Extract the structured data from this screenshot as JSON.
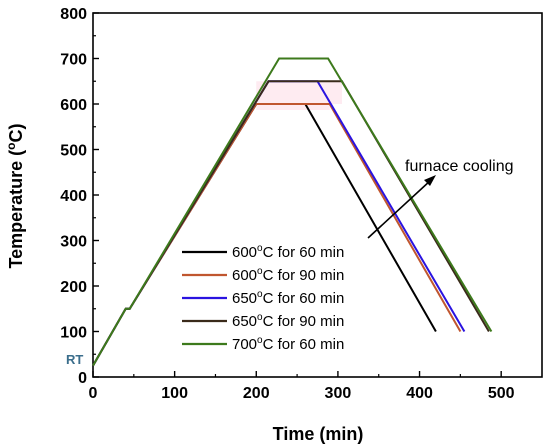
{
  "chart_data": {
    "type": "line",
    "xlabel": "Time (min)",
    "ylabel": {
      "prefix": "Temperature (",
      "sup": "o",
      "suffix": "C)"
    },
    "xlim": [
      0,
      550
    ],
    "ylim": [
      0,
      800
    ],
    "xticks": [
      "0",
      "100",
      "200",
      "300",
      "400",
      "500"
    ],
    "yticks": [
      "0",
      "100",
      "200",
      "300",
      "400",
      "500",
      "600",
      "700",
      "800"
    ],
    "grid": false,
    "legend_position": "bottom-left",
    "annotations": {
      "rt": "RT",
      "arrow_label": "furnace cooling"
    },
    "series": [
      {
        "label": {
          "temp": "600",
          "sup": "o",
          "rest": "C for 60 min"
        },
        "color": "#000000",
        "points": [
          [
            0,
            25
          ],
          [
            40,
            150
          ],
          [
            45,
            150
          ],
          [
            200,
            600
          ],
          [
            260,
            600
          ],
          [
            420,
            100
          ]
        ]
      },
      {
        "label": {
          "temp": "600",
          "sup": "o",
          "rest": "C for 90 min"
        },
        "color": "#c0562f",
        "points": [
          [
            0,
            25
          ],
          [
            40,
            150
          ],
          [
            45,
            150
          ],
          [
            200,
            600
          ],
          [
            290,
            600
          ],
          [
            450,
            100
          ]
        ]
      },
      {
        "label": {
          "temp": "650",
          "sup": "o",
          "rest": "C for 60 min"
        },
        "color": "#2a13e0",
        "points": [
          [
            0,
            25
          ],
          [
            40,
            150
          ],
          [
            45,
            150
          ],
          [
            215,
            650
          ],
          [
            275,
            650
          ],
          [
            455,
            100
          ]
        ]
      },
      {
        "label": {
          "temp": "650",
          "sup": "o",
          "rest": "C for 90 min"
        },
        "color": "#3a2a1a",
        "points": [
          [
            0,
            25
          ],
          [
            40,
            150
          ],
          [
            45,
            150
          ],
          [
            215,
            650
          ],
          [
            305,
            650
          ],
          [
            485,
            100
          ]
        ]
      },
      {
        "label": {
          "temp": "700",
          "sup": "o",
          "rest": "C for 60 min"
        },
        "color": "#3d7a1c",
        "points": [
          [
            0,
            25
          ],
          [
            40,
            150
          ],
          [
            45,
            150
          ],
          [
            228,
            700
          ],
          [
            288,
            700
          ],
          [
            488,
            100
          ]
        ]
      }
    ]
  }
}
